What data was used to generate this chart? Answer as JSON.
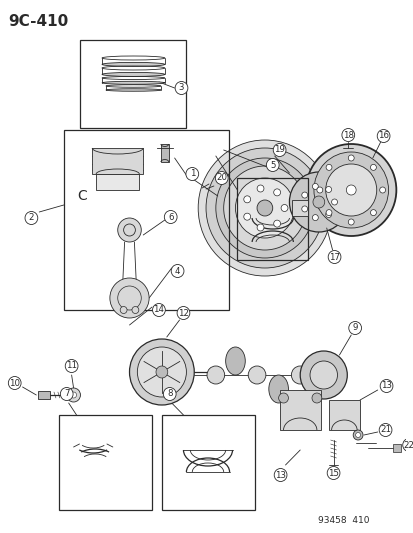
{
  "title": "9C-410",
  "footer": "93458  410",
  "bg_color": "#ffffff",
  "lc": "#2a2a2a",
  "lc_gray": "#888888",
  "fill_light": "#d8d8d8",
  "fill_mid": "#bbbbbb",
  "fill_dark": "#888888"
}
